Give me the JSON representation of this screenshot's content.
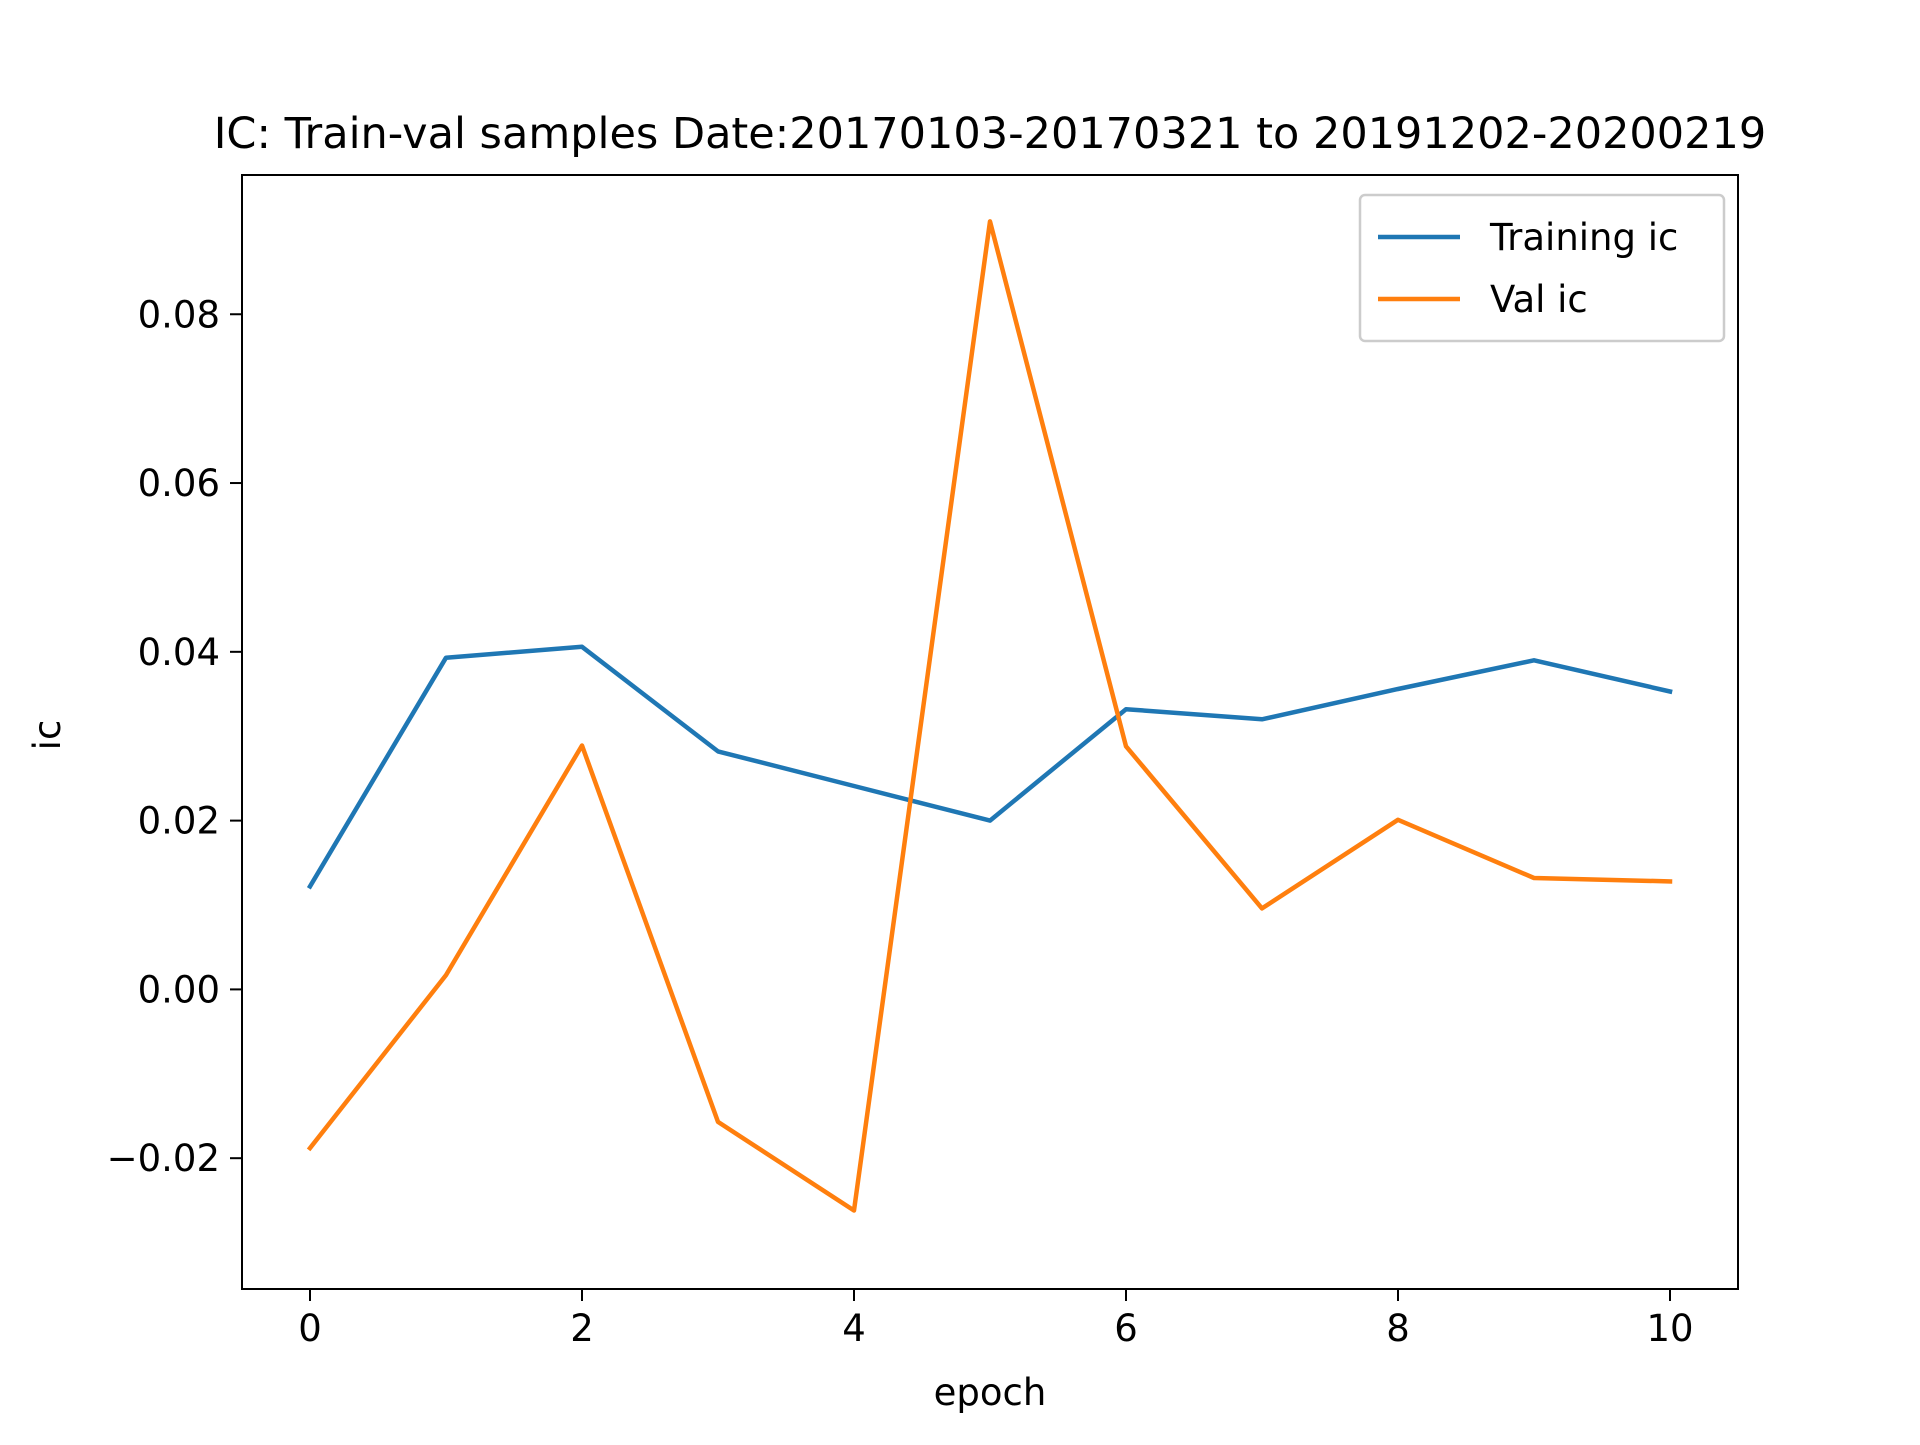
{
  "chart_data": {
    "type": "line",
    "title": "IC: Train-val samples Date:20170103-20170321 to 20191202-20200219",
    "xlabel": "epoch",
    "ylabel": "ic",
    "x": [
      0,
      1,
      2,
      3,
      4,
      5,
      6,
      7,
      8,
      9,
      10
    ],
    "xlim": [
      -0.5,
      10.5
    ],
    "ylim": [
      -0.0355,
      0.0965
    ],
    "xticks": [
      0,
      2,
      4,
      6,
      8,
      10
    ],
    "xtick_labels": [
      "0",
      "2",
      "4",
      "6",
      "8",
      "10"
    ],
    "yticks": [
      -0.02,
      0.0,
      0.02,
      0.04,
      0.06,
      0.08
    ],
    "ytick_labels": [
      "−0.02",
      "0.00",
      "0.02",
      "0.04",
      "0.06",
      "0.08"
    ],
    "grid": false,
    "legend_position": "top-right",
    "series": [
      {
        "name": "Training ic",
        "color": "#1f77b4",
        "values": [
          0.0122,
          0.0393,
          0.0406,
          0.0282,
          0.0241,
          0.02,
          0.0332,
          0.032,
          0.0356,
          0.039,
          0.0353
        ]
      },
      {
        "name": "Val ic",
        "color": "#ff7f0e",
        "values": [
          -0.0188,
          0.0017,
          0.0289,
          -0.0157,
          -0.0262,
          0.091,
          0.0288,
          0.0096,
          0.0201,
          0.0132,
          0.0128
        ]
      }
    ]
  }
}
